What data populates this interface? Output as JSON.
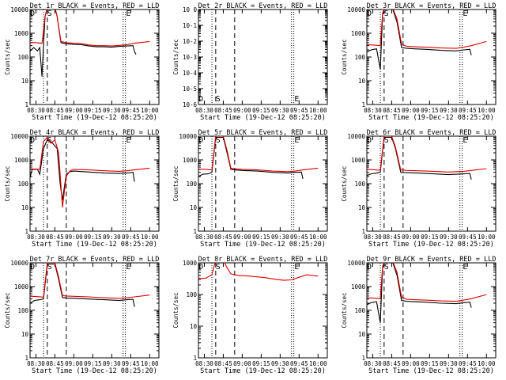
{
  "chart_data": [
    {
      "type": "line",
      "title": "Det 1r BLACK = Events, RED = LLD",
      "xlabel": "Start Time (19-Dec-12 08:25:20)",
      "ylabel": "Counts/sec",
      "ylim": [
        1,
        10000
      ],
      "yticks": [
        "1",
        "10",
        "100",
        "1000",
        "10000"
      ],
      "xticks": [
        "08:30",
        "08:45",
        "09:00",
        "09:15",
        "09:30",
        "09:45",
        "10:00"
      ],
      "markers": [
        "D",
        "S",
        "E"
      ],
      "series": [
        {
          "name": "Events",
          "color": "#000000",
          "x": [
            8.35,
            8.4,
            8.47,
            8.52,
            8.55,
            8.58,
            8.6,
            8.62,
            8.65,
            8.75,
            8.78,
            8.83,
            8.9,
            9.0,
            9.1,
            9.2,
            9.3,
            9.4,
            9.5,
            9.6,
            9.7,
            9.78,
            9.8,
            9.82
          ],
          "y": [
            200,
            150,
            250,
            180,
            250,
            15,
            300,
            5000,
            12000,
            12000,
            5000,
            400,
            360,
            340,
            330,
            290,
            270,
            270,
            260,
            280,
            290,
            300,
            170,
            130
          ]
        },
        {
          "name": "LLD",
          "color": "#dd0000",
          "x": [
            8.35,
            8.5,
            8.58,
            8.62,
            8.65,
            8.75,
            8.78,
            8.83,
            8.9,
            9.0,
            9.1,
            9.2,
            9.3,
            9.4,
            9.5,
            9.6,
            9.7,
            9.8,
            10.0
          ],
          "y": [
            420,
            400,
            380,
            5000,
            12000,
            12000,
            5000,
            450,
            400,
            380,
            370,
            320,
            300,
            300,
            290,
            310,
            330,
            380,
            450
          ]
        }
      ]
    },
    {
      "type": "line",
      "title": "Det 2r BLACK = Events, RED = LLD",
      "xlabel": "Start Time (19-Dec-12 08:25:20)",
      "ylabel": "Counts/sec",
      "ylim": [
        1e-06,
        1
      ],
      "yticks": [
        "10-6",
        "10-5",
        "10-4",
        "10-3",
        "10-2",
        "10-1",
        "10 0"
      ],
      "xticks": [
        "08:30",
        "08:45",
        "09:00",
        "09:15",
        "09:30",
        "09:45",
        "10:00"
      ],
      "markers": [
        "D",
        "S",
        "E"
      ],
      "series": []
    },
    {
      "type": "line",
      "title": "Det 3r BLACK = Events, RED = LLD",
      "xlabel": "Start Time (19-Dec-12 08:25:20)",
      "ylabel": "Counts/sec",
      "ylim": [
        1,
        10000
      ],
      "yticks": [
        "1",
        "10",
        "100",
        "1000",
        "10000"
      ],
      "xticks": [
        "08:30",
        "08:45",
        "09:00",
        "09:15",
        "09:30",
        "09:45",
        "10:00"
      ],
      "markers": [
        "D",
        "S",
        "E"
      ],
      "series": [
        {
          "name": "Events",
          "color": "#000000",
          "x": [
            8.35,
            8.42,
            8.48,
            8.55,
            8.6,
            8.63,
            8.67,
            8.75,
            8.82,
            8.88,
            8.95,
            9.05,
            9.2,
            9.4,
            9.6,
            9.7,
            9.78,
            9.8
          ],
          "y": [
            180,
            160,
            200,
            220,
            30,
            6000,
            14000,
            14000,
            3000,
            250,
            230,
            220,
            210,
            190,
            180,
            200,
            210,
            120
          ]
        },
        {
          "name": "LLD",
          "color": "#dd0000",
          "x": [
            8.35,
            8.5,
            8.6,
            8.63,
            8.67,
            8.75,
            8.82,
            8.88,
            8.95,
            9.05,
            9.2,
            9.4,
            9.6,
            9.7,
            9.8,
            10.0
          ],
          "y": [
            330,
            320,
            300,
            7000,
            15000,
            15000,
            4000,
            350,
            280,
            270,
            260,
            240,
            230,
            260,
            300,
            450
          ]
        }
      ]
    },
    {
      "type": "line",
      "title": "Det 4r BLACK = Events, RED = LLD",
      "xlabel": "Start Time (19-Dec-12 08:25:20)",
      "ylabel": "Counts/sec",
      "ylim": [
        1,
        10000
      ],
      "yticks": [
        "1",
        "10",
        "100",
        "1000",
        "10000"
      ],
      "xticks": [
        "08:30",
        "08:45",
        "09:00",
        "09:15",
        "09:30",
        "09:45",
        "10:00"
      ],
      "markers": [
        "D",
        "S",
        "E"
      ],
      "series": [
        {
          "name": "Events",
          "color": "#000000",
          "x": [
            8.35,
            8.4,
            8.45,
            8.52,
            8.55,
            8.6,
            8.65,
            8.72,
            8.78,
            8.82,
            8.85,
            8.9,
            8.95,
            9.0,
            9.2,
            9.4,
            9.6,
            9.7,
            9.78,
            9.8
          ],
          "y": [
            300,
            100,
            400,
            400,
            250,
            3000,
            7000,
            5000,
            3000,
            100,
            20,
            250,
            320,
            340,
            310,
            280,
            270,
            280,
            300,
            120
          ]
        },
        {
          "name": "LLD",
          "color": "#dd0000",
          "x": [
            8.35,
            8.45,
            8.55,
            8.6,
            8.65,
            8.7,
            8.75,
            8.8,
            8.85,
            8.9,
            8.95,
            9.0,
            9.2,
            9.4,
            9.6,
            9.7,
            9.8,
            10.0
          ],
          "y": [
            450,
            420,
            400,
            6000,
            9000,
            5000,
            7000,
            2000,
            10,
            200,
            350,
            400,
            380,
            350,
            330,
            350,
            380,
            450
          ]
        }
      ]
    },
    {
      "type": "line",
      "title": "Det 5r BLACK = Events, RED = LLD",
      "xlabel": "Start Time (19-Dec-12 08:25:20)",
      "ylabel": "Counts/sec",
      "ylim": [
        1,
        10000
      ],
      "yticks": [
        "1",
        "10",
        "100",
        "1000",
        "10000"
      ],
      "xticks": [
        "08:30",
        "08:45",
        "09:00",
        "09:15",
        "09:30",
        "09:45",
        "10:00"
      ],
      "markers": [
        "D",
        "S",
        "E"
      ],
      "series": [
        {
          "name": "Events",
          "color": "#000000",
          "x": [
            8.35,
            8.42,
            8.48,
            8.55,
            8.6,
            8.65,
            8.75,
            8.8,
            8.85,
            8.9,
            9.0,
            9.2,
            9.4,
            9.6,
            9.7,
            9.78,
            9.8
          ],
          "y": [
            220,
            200,
            250,
            260,
            300,
            9000,
            9000,
            2000,
            400,
            380,
            360,
            340,
            300,
            280,
            300,
            310,
            160
          ]
        },
        {
          "name": "LLD",
          "color": "#dd0000",
          "x": [
            8.35,
            8.5,
            8.6,
            8.65,
            8.75,
            8.8,
            8.85,
            8.9,
            9.0,
            9.2,
            9.4,
            9.6,
            9.7,
            9.8,
            10.0
          ],
          "y": [
            420,
            400,
            380,
            10000,
            10000,
            2500,
            450,
            420,
            400,
            380,
            340,
            320,
            340,
            380,
            450
          ]
        }
      ]
    },
    {
      "type": "line",
      "title": "Det 6r BLACK = Events, RED = LLD",
      "xlabel": "Start Time (19-Dec-12 08:25:20)",
      "ylabel": "Counts/sec",
      "ylim": [
        1,
        10000
      ],
      "yticks": [
        "1",
        "10",
        "100",
        "1000",
        "10000"
      ],
      "xticks": [
        "08:30",
        "08:45",
        "09:00",
        "09:15",
        "09:30",
        "09:45",
        "10:00"
      ],
      "markers": [
        "D",
        "S",
        "E"
      ],
      "series": [
        {
          "name": "Events",
          "color": "#000000",
          "x": [
            8.35,
            8.42,
            8.48,
            8.55,
            8.6,
            8.65,
            8.75,
            8.8,
            8.87,
            8.95,
            9.1,
            9.3,
            9.5,
            9.7,
            9.78,
            9.8
          ],
          "y": [
            260,
            220,
            260,
            280,
            300,
            9000,
            9000,
            3000,
            300,
            290,
            280,
            260,
            240,
            260,
            270,
            150
          ]
        },
        {
          "name": "LLD",
          "color": "#dd0000",
          "x": [
            8.35,
            8.5,
            8.6,
            8.65,
            8.75,
            8.8,
            8.87,
            8.95,
            9.1,
            9.3,
            9.5,
            9.7,
            9.8,
            10.0
          ],
          "y": [
            400,
            390,
            370,
            10000,
            10000,
            3500,
            380,
            360,
            350,
            330,
            310,
            330,
            360,
            430
          ]
        }
      ]
    },
    {
      "type": "line",
      "title": "Det 7r BLACK = Events, RED = LLD",
      "xlabel": "Start Time (19-Dec-12 08:25:20)",
      "ylabel": "Counts/sec",
      "ylim": [
        1,
        10000
      ],
      "yticks": [
        "1",
        "10",
        "100",
        "1000",
        "10000"
      ],
      "xticks": [
        "08:30",
        "08:45",
        "09:00",
        "09:15",
        "09:30",
        "09:45",
        "10:00"
      ],
      "markers": [
        "D",
        "S",
        "E"
      ],
      "series": [
        {
          "name": "Events",
          "color": "#000000",
          "x": [
            8.35,
            8.42,
            8.48,
            8.55,
            8.6,
            8.65,
            8.75,
            8.8,
            8.85,
            8.9,
            9.0,
            9.2,
            9.4,
            9.6,
            9.7,
            9.78,
            9.8
          ],
          "y": [
            250,
            200,
            260,
            280,
            300,
            9000,
            9000,
            2000,
            350,
            330,
            320,
            300,
            280,
            260,
            280,
            290,
            140
          ]
        },
        {
          "name": "LLD",
          "color": "#dd0000",
          "x": [
            8.35,
            8.5,
            8.6,
            8.65,
            8.75,
            8.8,
            8.85,
            8.9,
            9.0,
            9.2,
            9.4,
            9.6,
            9.7,
            9.8,
            10.0
          ],
          "y": [
            400,
            380,
            360,
            10000,
            10000,
            2500,
            420,
            400,
            390,
            370,
            340,
            320,
            340,
            370,
            440
          ]
        }
      ]
    },
    {
      "type": "line",
      "title": "Det 8r BLACK = Events, RED = LLD",
      "xlabel": "Start Time (19-Dec-12 08:25:20)",
      "ylabel": "Counts/sec",
      "ylim": [
        1,
        1000
      ],
      "yticks": [
        "1",
        "10",
        "100",
        "1000"
      ],
      "xticks": [
        "08:30",
        "08:45",
        "09:00",
        "09:15",
        "09:30",
        "09:45",
        "10:00"
      ],
      "markers": [
        "D",
        "S",
        "E"
      ],
      "series": [
        {
          "name": "Events",
          "color": "#000000",
          "x": [
            8.38,
            8.39
          ],
          "y": [
            2,
            1.5
          ]
        },
        {
          "name": "LLD",
          "color": "#dd0000",
          "x": [
            8.35,
            8.45,
            8.52,
            8.55,
            8.6,
            8.65,
            8.75,
            8.8,
            8.85,
            8.95,
            9.1,
            9.3,
            9.45,
            9.55,
            9.65,
            9.75,
            9.85,
            10.0
          ],
          "y": [
            380,
            320,
            330,
            360,
            420,
            1200,
            1200,
            700,
            450,
            400,
            380,
            340,
            300,
            280,
            290,
            350,
            420,
            380
          ]
        }
      ]
    },
    {
      "type": "line",
      "title": "Det 9r BLACK = Events, RED = LLD",
      "xlabel": "Start Time (19-Dec-12 08:25:20)",
      "ylabel": "Counts/sec",
      "ylim": [
        1,
        10000
      ],
      "yticks": [
        "1",
        "10",
        "100",
        "1000",
        "10000"
      ],
      "xticks": [
        "08:30",
        "08:45",
        "09:00",
        "09:15",
        "09:30",
        "09:45",
        "10:00"
      ],
      "markers": [
        "D",
        "S",
        "E"
      ],
      "series": [
        {
          "name": "Events",
          "color": "#000000",
          "x": [
            8.35,
            8.42,
            8.48,
            8.55,
            8.6,
            8.63,
            8.67,
            8.75,
            8.82,
            8.88,
            8.95,
            9.05,
            9.2,
            9.4,
            9.6,
            9.7,
            9.78,
            9.8
          ],
          "y": [
            190,
            170,
            210,
            230,
            30,
            6000,
            14000,
            14000,
            3000,
            260,
            240,
            230,
            220,
            200,
            190,
            210,
            220,
            130
          ]
        },
        {
          "name": "LLD",
          "color": "#dd0000",
          "x": [
            8.35,
            8.5,
            8.6,
            8.63,
            8.67,
            8.75,
            8.82,
            8.88,
            8.95,
            9.05,
            9.2,
            9.4,
            9.6,
            9.7,
            9.8,
            10.0
          ],
          "y": [
            340,
            330,
            310,
            7000,
            15000,
            15000,
            4000,
            360,
            290,
            280,
            270,
            250,
            240,
            270,
            310,
            460
          ]
        }
      ]
    }
  ]
}
